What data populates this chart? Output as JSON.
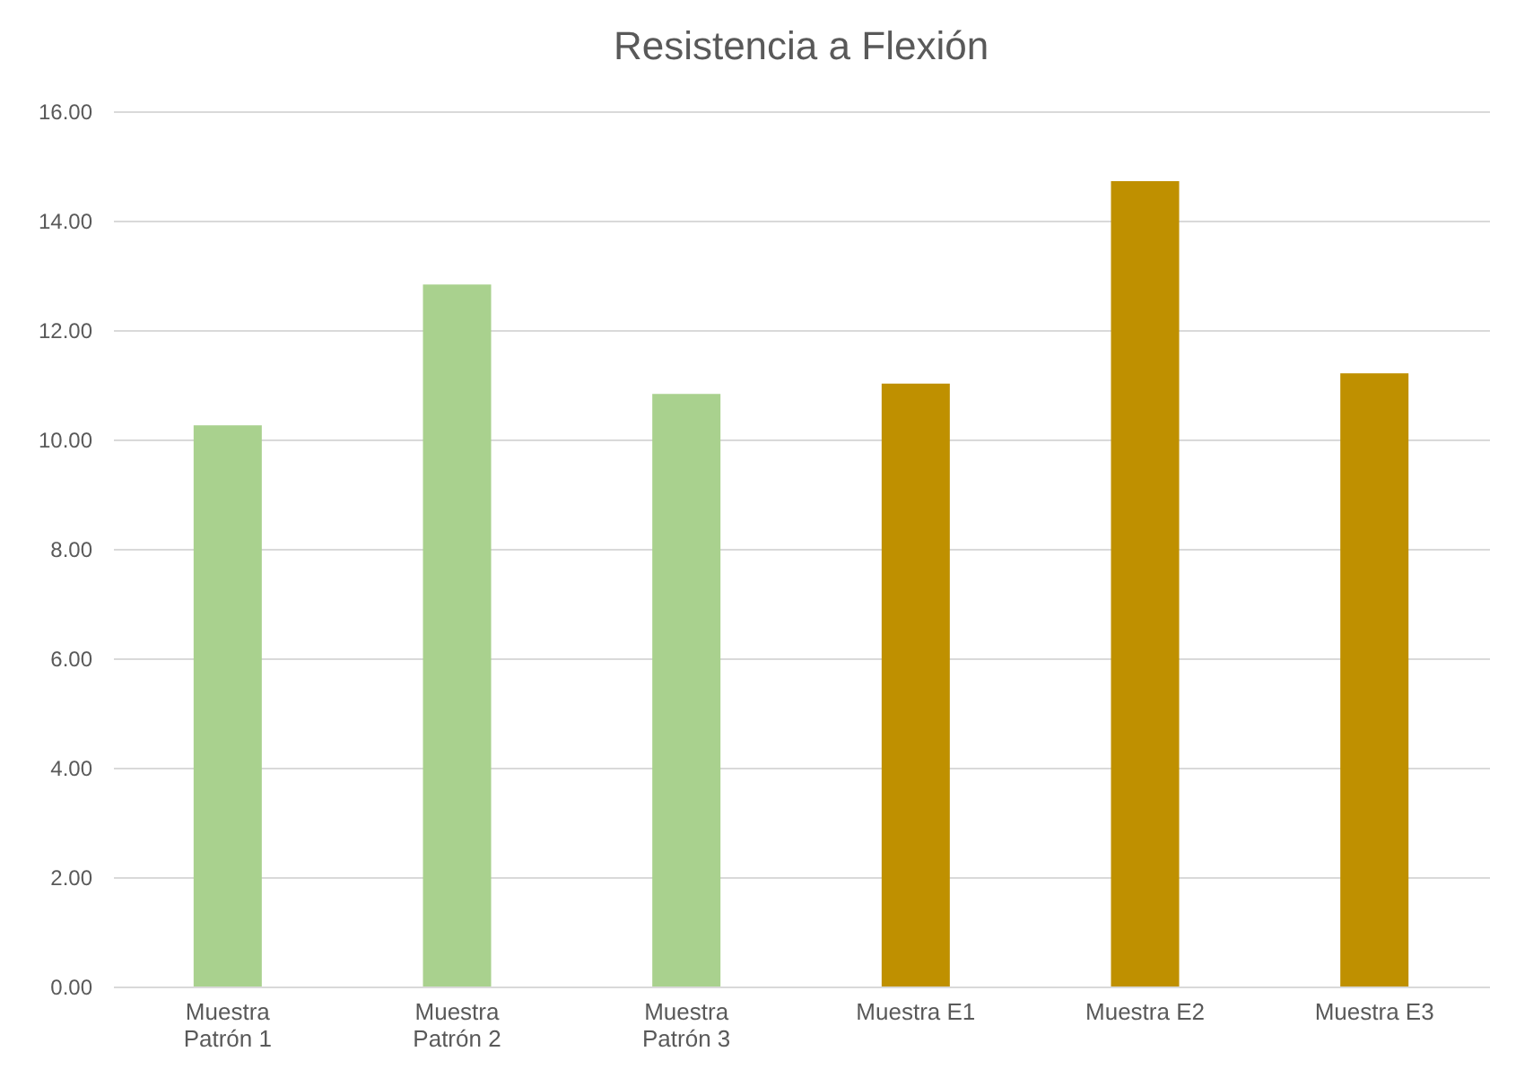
{
  "chart_data": {
    "type": "bar",
    "title": "Resistencia a Flexión",
    "categories": [
      "Muestra Patrón 1",
      "Muestra Patrón 2",
      "Muestra Patrón 3",
      "Muestra E1",
      "Muestra E2",
      "Muestra E3"
    ],
    "values": [
      10.26,
      12.83,
      10.83,
      11.02,
      14.72,
      11.21
    ],
    "colors": [
      "#a9d18e",
      "#a9d18e",
      "#a9d18e",
      "#bf9000",
      "#bf9000",
      "#bf9000"
    ],
    "ylim": [
      0,
      16
    ],
    "yticks": [
      {
        "value": 0,
        "label": "0.00"
      },
      {
        "value": 2,
        "label": "2.00"
      },
      {
        "value": 4,
        "label": "4.00"
      },
      {
        "value": 6,
        "label": "6.00"
      },
      {
        "value": 8,
        "label": "8.00"
      },
      {
        "value": 10,
        "label": "10.00"
      },
      {
        "value": 12,
        "label": "12.00"
      },
      {
        "value": 14,
        "label": "14.00"
      },
      {
        "value": 16,
        "label": "16.00"
      }
    ],
    "grid": "y"
  }
}
